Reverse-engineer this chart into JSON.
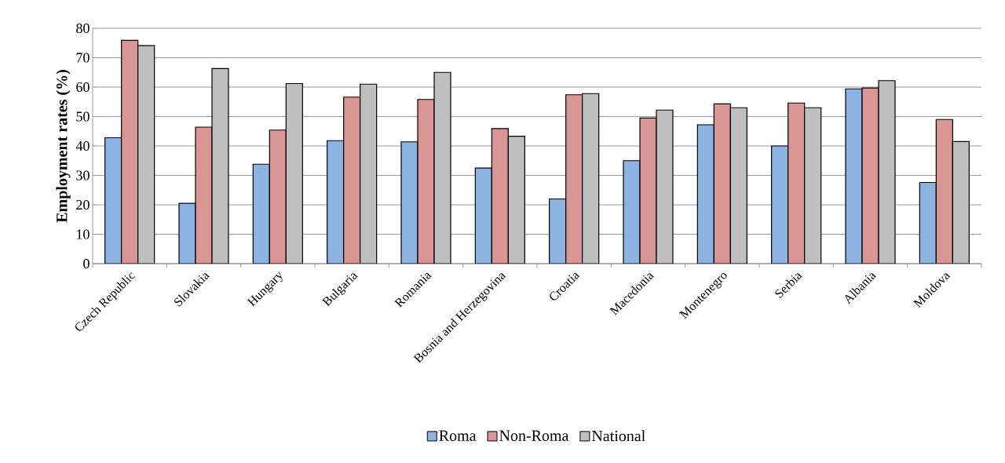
{
  "chart_data": {
    "type": "bar",
    "ylabel": "Employment rates (%)",
    "categories": [
      "Czech Republic",
      "Slovakia",
      "Hungary",
      "Bulgaria",
      "Romania",
      "Bosnia and Herzegovina",
      "Croatia",
      "Macedonia",
      "Montenegro",
      "Serbia",
      "Albania",
      "Moldova"
    ],
    "series": [
      {
        "name": "Roma",
        "color": "#8db3e2",
        "values": [
          42.8,
          20.5,
          33.8,
          41.8,
          41.4,
          32.5,
          22.0,
          35.0,
          47.2,
          40.0,
          59.4,
          27.6
        ]
      },
      {
        "name": "Non-Roma",
        "color": "#d99694",
        "values": [
          75.9,
          46.4,
          45.4,
          56.6,
          55.8,
          45.9,
          57.4,
          49.5,
          54.3,
          54.6,
          59.7,
          49.0
        ]
      },
      {
        "name": "National",
        "color": "#bfbfbf",
        "values": [
          74.1,
          66.3,
          61.2,
          61.0,
          65.0,
          43.3,
          57.8,
          52.2,
          53.0,
          53.0,
          62.2,
          41.5
        ]
      }
    ],
    "ylim": [
      0,
      80
    ],
    "yticks": [
      0,
      10,
      20,
      30,
      40,
      50,
      60,
      70,
      80
    ],
    "grid": "y",
    "legend": "bottom"
  }
}
